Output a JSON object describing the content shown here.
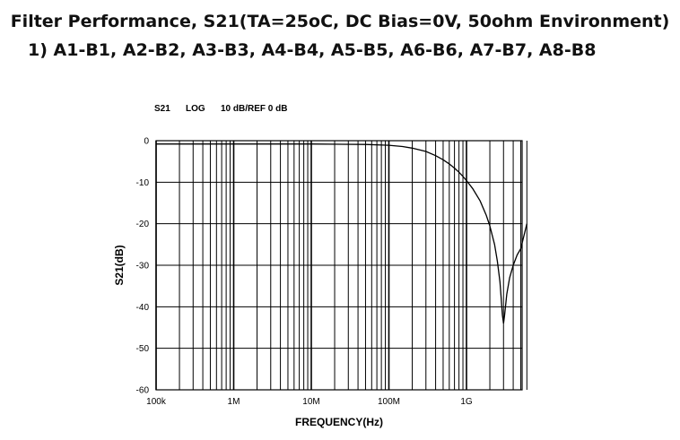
{
  "header": {
    "title": "Filter Performance, S21(TA=25oC, DC Bias=0V, 50ohm Environment)",
    "subtitle": "1) A1-B1, A2-B2, A3-B3, A4-B4, A5-B5, A6-B6, A7-B7, A8-B8"
  },
  "chart_data": {
    "type": "line",
    "plot_header": {
      "param": "S21",
      "format": "LOG",
      "scale": "10 dB/REF 0 dB"
    },
    "xlabel": "FREQUENCY(Hz)",
    "ylabel": "S21(dB)",
    "x_scale": "log",
    "xlim": [
      100000,
      6000000000
    ],
    "ylim": [
      -60,
      0
    ],
    "grid": true,
    "x_tick_labels": [
      {
        "value": 100000,
        "label": "100k"
      },
      {
        "value": 1000000,
        "label": "1M"
      },
      {
        "value": 10000000,
        "label": "10M"
      },
      {
        "value": 100000000,
        "label": "100M"
      },
      {
        "value": 1000000000,
        "label": "1G"
      }
    ],
    "y_tick_labels": [
      {
        "value": 0,
        "label": "0"
      },
      {
        "value": -10,
        "label": "-10"
      },
      {
        "value": -20,
        "label": "-20"
      },
      {
        "value": -30,
        "label": "-30"
      },
      {
        "value": -40,
        "label": "-40"
      },
      {
        "value": -50,
        "label": "-50"
      },
      {
        "value": -60,
        "label": "-60"
      }
    ],
    "series": [
      {
        "color": "#000000",
        "x": [
          100000,
          1000000,
          10000000,
          50000000,
          100000000,
          150000000,
          200000000,
          300000000,
          400000000,
          500000000,
          600000000,
          700000000,
          800000000,
          900000000,
          1000000000,
          1200000000,
          1500000000,
          1800000000,
          2000000000,
          2300000000,
          2500000000,
          2700000000,
          2800000000,
          2900000000,
          3000000000,
          3100000000,
          3300000000,
          3600000000,
          4000000000,
          4500000000,
          5000000000,
          6000000000
        ],
        "y": [
          -0.8,
          -0.8,
          -0.8,
          -0.9,
          -1.1,
          -1.4,
          -1.8,
          -2.6,
          -3.6,
          -4.6,
          -5.6,
          -6.6,
          -7.6,
          -8.6,
          -9.6,
          -11.5,
          -14.5,
          -18.0,
          -20.5,
          -25.0,
          -29.0,
          -34.0,
          -38.0,
          -42.0,
          -44.0,
          -42.0,
          -37.0,
          -33.0,
          -30.0,
          -27.5,
          -26.0,
          -20.0
        ]
      }
    ]
  }
}
